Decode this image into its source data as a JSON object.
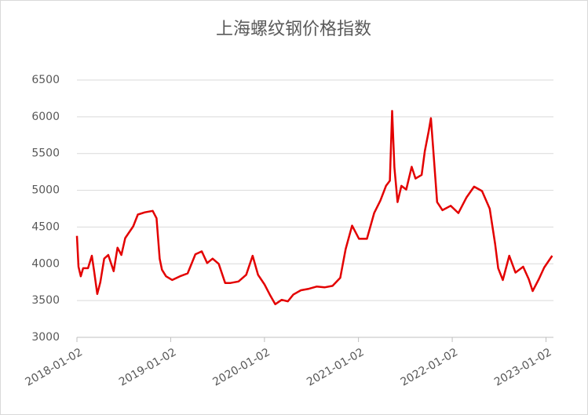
{
  "chart_data": {
    "type": "line",
    "title": "上海螺纹钢价格指数",
    "x": [
      "2018-01-02",
      "2018-01-08",
      "2018-01-17",
      "2018-01-26",
      "2018-02-14",
      "2018-03-01",
      "2018-03-10",
      "2018-03-22",
      "2018-04-03",
      "2018-04-18",
      "2018-05-04",
      "2018-05-25",
      "2018-06-09",
      "2018-06-24",
      "2018-07-09",
      "2018-08-09",
      "2018-08-27",
      "2018-09-23",
      "2018-10-24",
      "2018-11-08",
      "2018-11-20",
      "2018-11-29",
      "2018-12-15",
      "2019-01-08",
      "2019-02-07",
      "2019-03-09",
      "2019-04-08",
      "2019-05-03",
      "2019-05-24",
      "2019-06-14",
      "2019-07-08",
      "2019-08-02",
      "2019-08-23",
      "2019-09-23",
      "2019-10-23",
      "2019-11-17",
      "2019-12-08",
      "2020-01-02",
      "2020-01-23",
      "2020-02-13",
      "2020-03-09",
      "2020-04-02",
      "2020-04-23",
      "2020-05-23",
      "2020-06-23",
      "2020-07-23",
      "2020-08-23",
      "2020-09-23",
      "2020-10-23",
      "2020-11-13",
      "2020-12-08",
      "2021-01-04",
      "2021-02-04",
      "2021-03-04",
      "2021-03-28",
      "2021-04-19",
      "2021-05-04",
      "2021-05-13",
      "2021-05-22",
      "2021-06-03",
      "2021-06-18",
      "2021-07-07",
      "2021-07-28",
      "2021-08-12",
      "2021-09-05",
      "2021-09-17",
      "2021-10-02",
      "2021-10-11",
      "2021-10-20",
      "2021-11-04",
      "2021-11-25",
      "2021-12-27",
      "2022-01-26",
      "2022-02-26",
      "2022-03-28",
      "2022-04-28",
      "2022-05-28",
      "2022-06-18",
      "2022-06-30",
      "2022-07-18",
      "2022-08-12",
      "2022-09-05",
      "2022-10-05",
      "2022-10-27",
      "2022-11-11",
      "2022-12-05",
      "2022-12-26",
      "2023-01-26"
    ],
    "series": [
      {
        "color": "#e30000",
        "values": [
          4380,
          3960,
          3830,
          3940,
          3940,
          4110,
          3900,
          3590,
          3750,
          4070,
          4120,
          3900,
          4220,
          4120,
          4350,
          4510,
          4670,
          4700,
          4720,
          4620,
          4070,
          3920,
          3830,
          3780,
          3830,
          3870,
          4130,
          4170,
          4010,
          4070,
          4000,
          3740,
          3740,
          3760,
          3850,
          4110,
          3850,
          3720,
          3580,
          3450,
          3510,
          3490,
          3580,
          3640,
          3660,
          3690,
          3680,
          3700,
          3810,
          4200,
          4520,
          4340,
          4340,
          4690,
          4860,
          5060,
          5130,
          6080,
          5310,
          4840,
          5060,
          5010,
          5320,
          5160,
          5210,
          5530,
          5800,
          5980,
          5550,
          4840,
          4730,
          4790,
          4690,
          4900,
          5050,
          4990,
          4750,
          4270,
          3940,
          3780,
          4110,
          3880,
          3960,
          3790,
          3630,
          3790,
          3950,
          4110
        ]
      }
    ],
    "xlim": [
      "2018-01-02",
      "2023-01-31"
    ],
    "xticks": [
      "2018-01-02",
      "2019-01-02",
      "2020-01-02",
      "2021-01-02",
      "2022-01-02",
      "2023-01-02"
    ],
    "ylim": [
      3000,
      6500
    ],
    "yticks": [
      3000,
      3500,
      4000,
      4500,
      5000,
      5500,
      6000,
      6500
    ],
    "grid": true
  }
}
